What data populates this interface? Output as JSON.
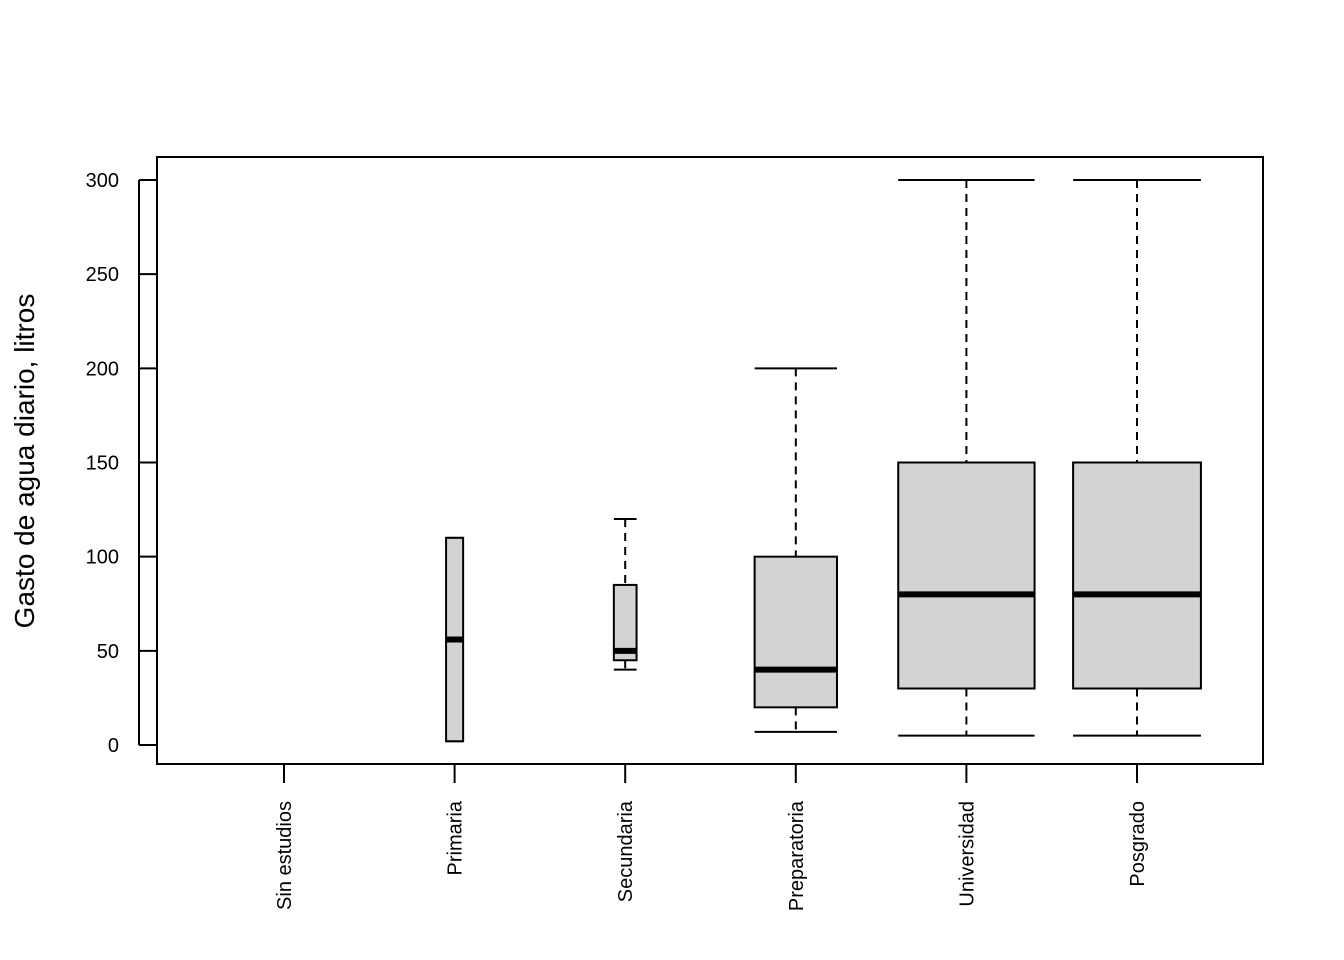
{
  "chart_data": {
    "type": "boxplot",
    "title": "",
    "xlabel": "",
    "ylabel": "Gasto de agua diario, litros",
    "ylim": [
      -10,
      312
    ],
    "yticks": [
      0,
      50,
      100,
      150,
      200,
      250,
      300
    ],
    "categories": [
      "Sin estudios",
      "Primaria",
      "Secundaria",
      "Preparatoria",
      "Universidad",
      "Posgrado"
    ],
    "boxes": [
      null,
      {
        "min": 2,
        "q1": 2,
        "median": 56,
        "q3": 110,
        "max": 110,
        "relative_width": 0.12
      },
      {
        "min": 40,
        "q1": 45,
        "median": 50,
        "q3": 85,
        "max": 120,
        "relative_width": 0.16
      },
      {
        "min": 7,
        "q1": 20,
        "median": 40,
        "q3": 100,
        "max": 200,
        "relative_width": 0.58
      },
      {
        "min": 5,
        "q1": 30,
        "median": 80,
        "q3": 150,
        "max": 300,
        "relative_width": 0.96
      },
      {
        "min": 5,
        "q1": 30,
        "median": 80,
        "q3": 150,
        "max": 300,
        "relative_width": 0.9
      }
    ],
    "box_fill": "#d3d3d3",
    "grid": false,
    "legend": "none"
  }
}
